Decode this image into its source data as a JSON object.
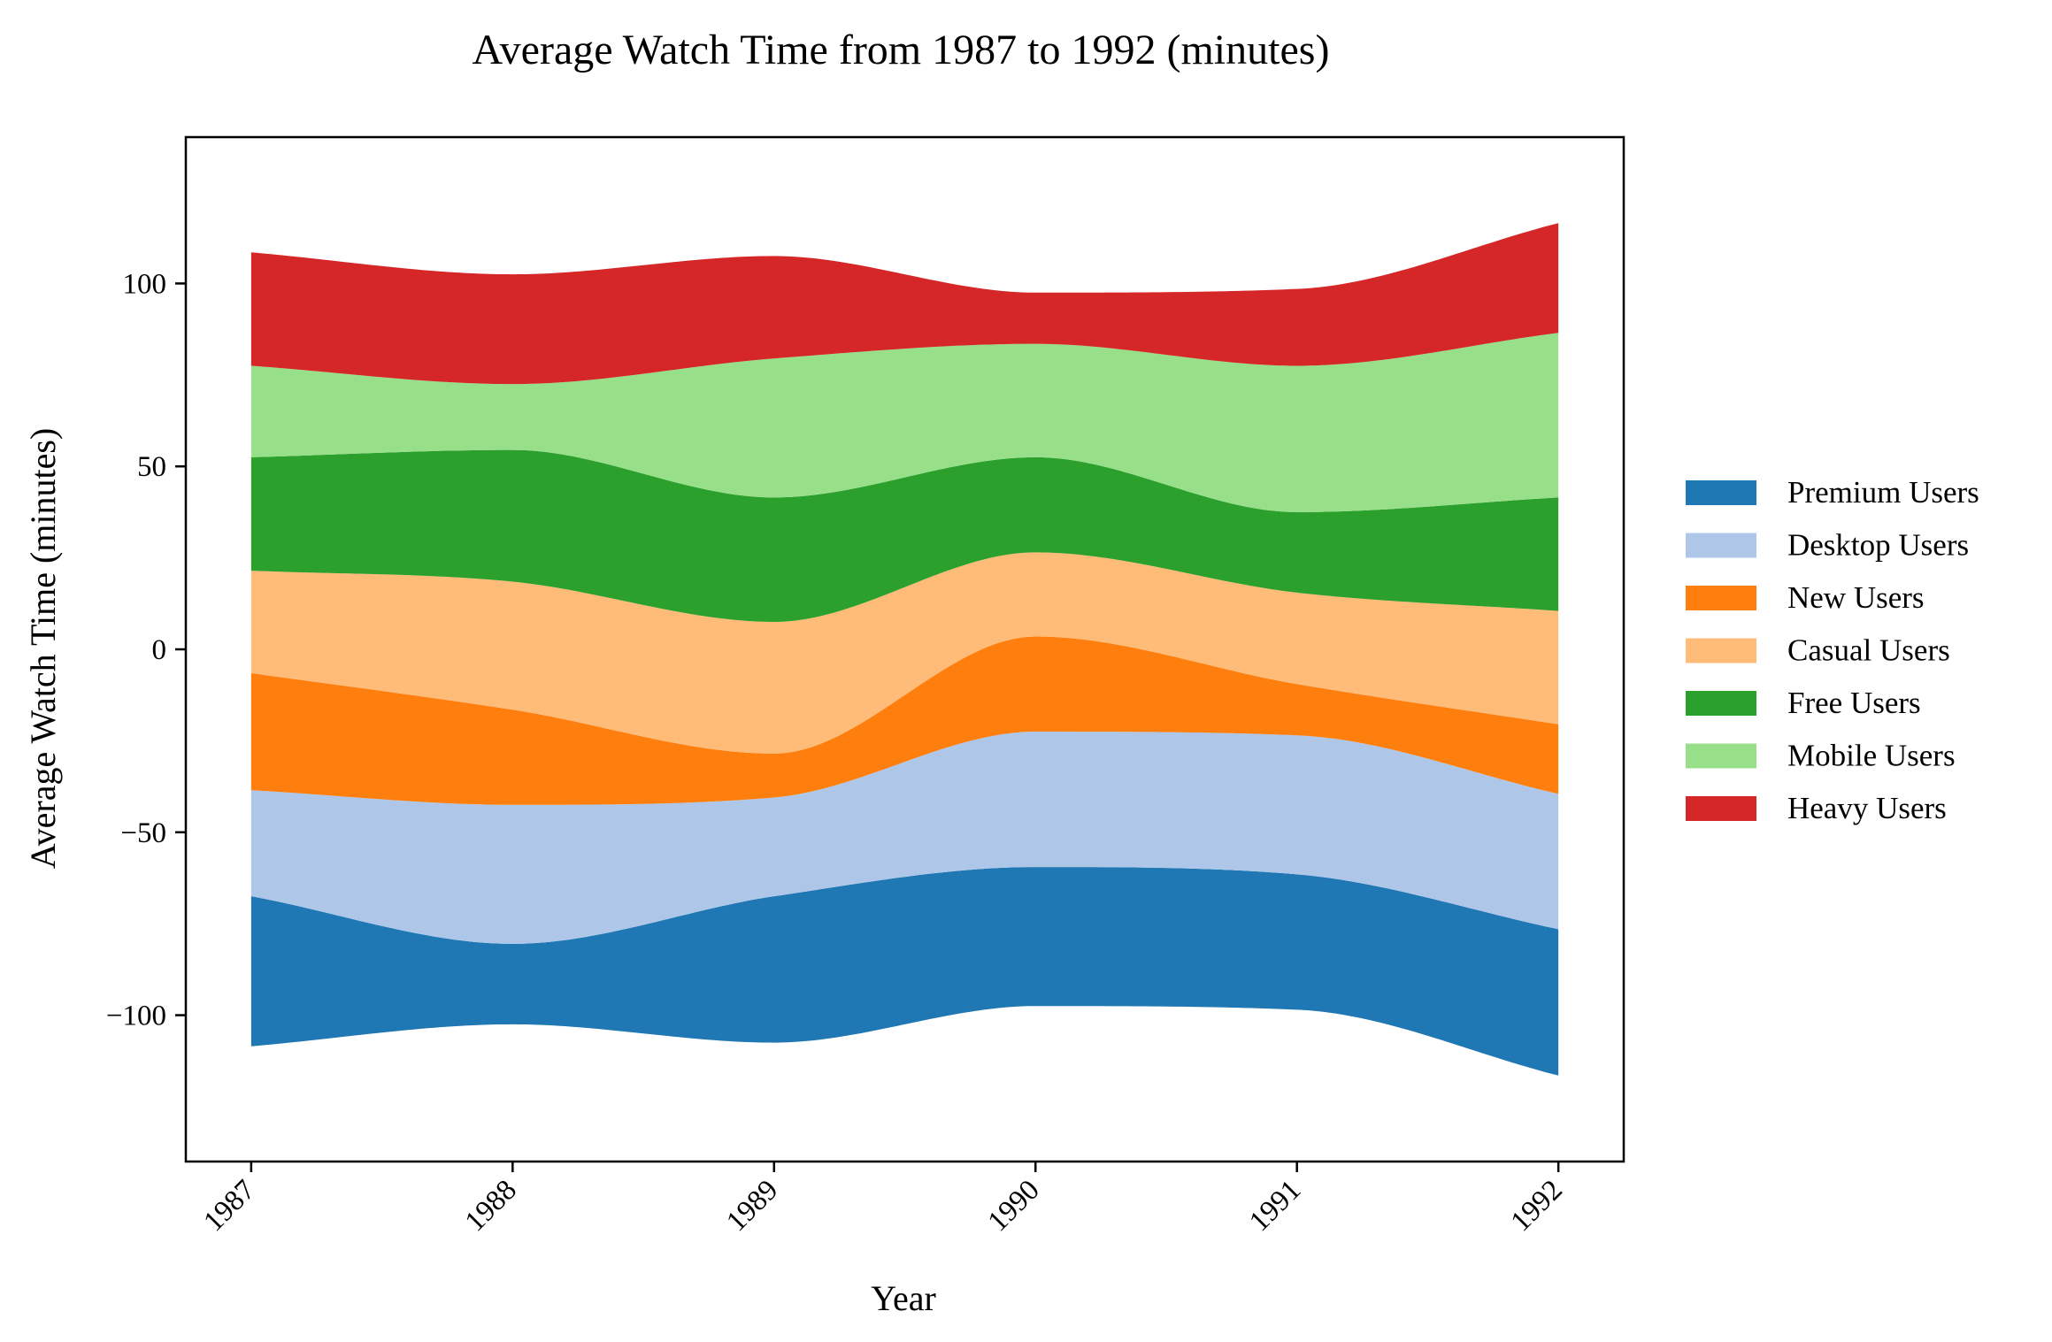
{
  "chart_data": {
    "type": "area",
    "subtype": "streamgraph",
    "title": "Average Watch Time from 1987 to 1992 (minutes)",
    "xlabel": "Year",
    "ylabel": "Average Watch Time (minutes)",
    "x": [
      1987,
      1988,
      1989,
      1990,
      1991,
      1992
    ],
    "x_tick_labels": [
      "1987",
      "1988",
      "1989",
      "1990",
      "1991",
      "1992"
    ],
    "ylim": [
      -140,
      140
    ],
    "y_ticks": [
      -100,
      -50,
      0,
      50,
      100
    ],
    "y_tick_labels": [
      "−100",
      "−50",
      "0",
      "50",
      "100"
    ],
    "grid": false,
    "legend_position": "right",
    "baseline": "symmetric",
    "series": [
      {
        "name": "Premium Users",
        "color": "#1f77b4",
        "values": [
          41,
          22,
          40,
          38,
          37,
          40
        ]
      },
      {
        "name": "Desktop Users",
        "color": "#aec7e8",
        "values": [
          29,
          38,
          27,
          37,
          38,
          37
        ]
      },
      {
        "name": "New Users",
        "color": "#ff7f0e",
        "values": [
          32,
          26,
          12,
          26,
          14,
          19
        ]
      },
      {
        "name": "Casual Users",
        "color": "#ffbb78",
        "values": [
          28,
          35,
          36,
          23,
          25,
          31
        ]
      },
      {
        "name": "Free Users",
        "color": "#2ca02c",
        "values": [
          31,
          36,
          34,
          26,
          22,
          31
        ]
      },
      {
        "name": "Mobile Users",
        "color": "#98df8a",
        "values": [
          25,
          18,
          38,
          31,
          40,
          45
        ]
      },
      {
        "name": "Heavy Users",
        "color": "#d62728",
        "values": [
          31,
          30,
          28,
          14,
          21,
          30
        ]
      }
    ]
  }
}
